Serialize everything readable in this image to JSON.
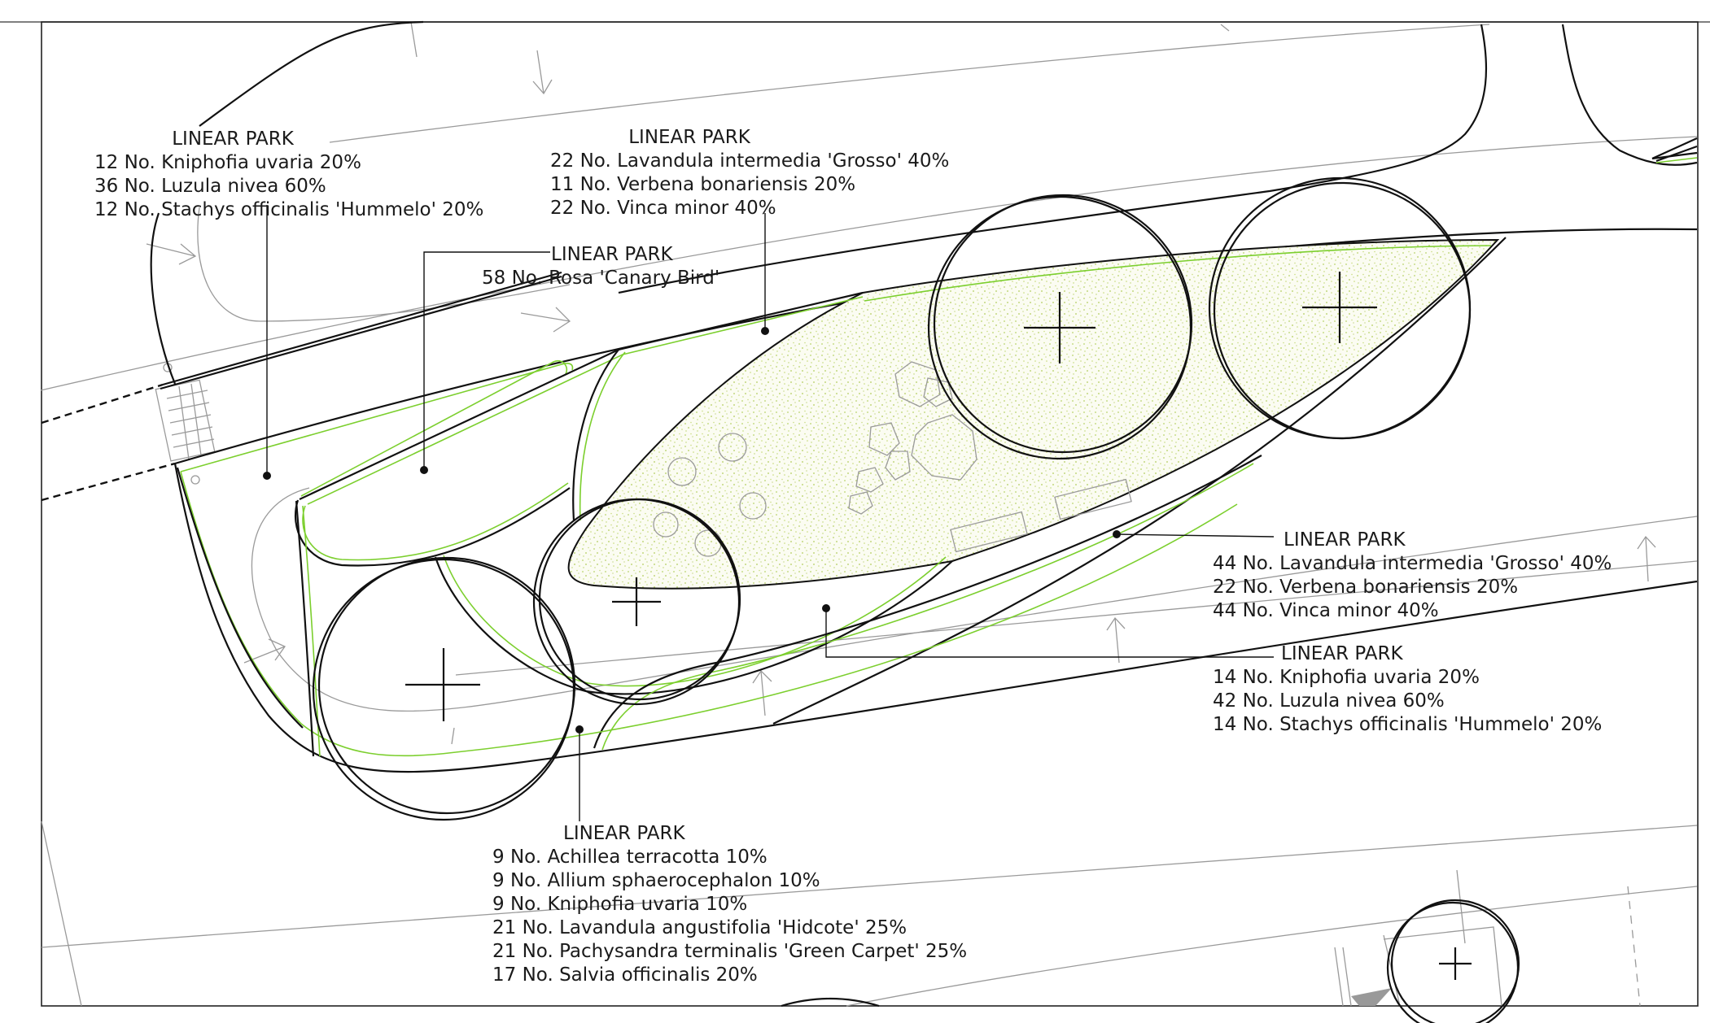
{
  "labels": [
    {
      "id": "label-1",
      "title": "LINEAR PARK",
      "lines": [
        "12 No. Kniphofia uvaria 20%",
        "36 No. Luzula nivea 60%",
        "12 No. Stachys officinalis 'Hummelo' 20%"
      ]
    },
    {
      "id": "label-2",
      "title": "LINEAR PARK",
      "lines": [
        "22 No. Lavandula intermedia 'Grosso' 40%",
        "11 No. Verbena bonariensis 20%",
        "22 No. Vinca minor 40%"
      ]
    },
    {
      "id": "label-3",
      "title": "LINEAR PARK",
      "lines": [
        "58 No. Rosa 'Canary Bird'"
      ]
    },
    {
      "id": "label-4",
      "title": "LINEAR PARK",
      "lines": [
        "44 No. Lavandula intermedia 'Grosso' 40%",
        "22 No. Verbena bonariensis 20%",
        "44 No. Vinca minor 40%"
      ]
    },
    {
      "id": "label-5",
      "title": "LINEAR PARK",
      "lines": [
        "14 No. Kniphofia uvaria 20%",
        "42 No. Luzula nivea 60%",
        "14 No. Stachys officinalis 'Hummelo' 20%"
      ]
    },
    {
      "id": "label-6",
      "title": "LINEAR PARK",
      "lines": [
        "9 No. Achillea terracotta 10%",
        "9 No. Allium sphaerocephalon 10%",
        "9 No. Kniphofia uvaria 10%",
        "21 No. Lavandula angustifolia 'Hidcote' 25%",
        "21 No. Pachysandra terminalis 'Green Carpet' 25%",
        "17 No. Salvia officinalis 20%"
      ]
    }
  ],
  "colors": {
    "planting_edge": "#7ccf2e",
    "stipple": "#b9d36a",
    "linework": "#111111",
    "background_lines": "#9a9a9a"
  }
}
